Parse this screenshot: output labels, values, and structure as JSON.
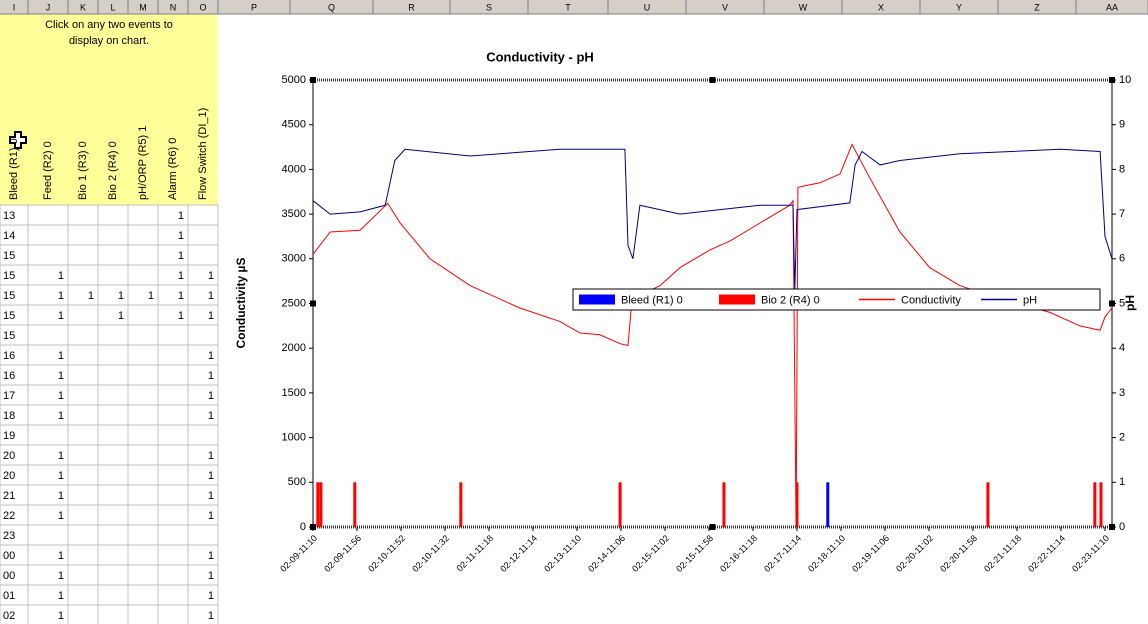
{
  "sheet": {
    "columns": [
      "I",
      "J",
      "K",
      "L",
      "M",
      "N",
      "O",
      "P",
      "Q",
      "R",
      "S",
      "T",
      "U",
      "V",
      "W",
      "X",
      "Y",
      "Z",
      "AA"
    ],
    "instruction": [
      "Click on any two events to",
      "display on chart."
    ],
    "headers": [
      "Bleed (R1) 0",
      "Feed (R2) 0",
      "Bio 1 (R3) 0",
      "Bio 2 (R4) 0",
      "pH/ORP (R5) 1",
      "Alarm (R6) 0",
      "Flow Switch (DI_1)"
    ],
    "rows": [
      [
        "13",
        null,
        null,
        null,
        null,
        1,
        null
      ],
      [
        "14",
        null,
        null,
        null,
        null,
        1,
        null
      ],
      [
        "15",
        null,
        null,
        null,
        null,
        1,
        null
      ],
      [
        "15",
        1,
        null,
        null,
        null,
        1,
        1
      ],
      [
        "15",
        1,
        1,
        1,
        1,
        1,
        1
      ],
      [
        "15",
        1,
        null,
        1,
        null,
        1,
        1
      ],
      [
        "15",
        null,
        null,
        null,
        null,
        null,
        null
      ],
      [
        "16",
        1,
        null,
        null,
        null,
        null,
        1
      ],
      [
        "16",
        1,
        null,
        null,
        null,
        null,
        1
      ],
      [
        "17",
        1,
        null,
        null,
        null,
        null,
        1
      ],
      [
        "18",
        1,
        null,
        null,
        null,
        null,
        1
      ],
      [
        "19",
        null,
        null,
        null,
        null,
        null,
        null
      ],
      [
        "20",
        1,
        null,
        null,
        null,
        null,
        1
      ],
      [
        "20",
        1,
        null,
        null,
        null,
        null,
        1
      ],
      [
        "21",
        1,
        null,
        null,
        null,
        null,
        1
      ],
      [
        "22",
        1,
        null,
        null,
        null,
        null,
        1
      ],
      [
        "23",
        null,
        null,
        null,
        null,
        null,
        null
      ],
      [
        "00",
        1,
        null,
        null,
        null,
        null,
        1
      ],
      [
        "00",
        1,
        null,
        null,
        null,
        null,
        1
      ],
      [
        "01",
        1,
        null,
        null,
        null,
        null,
        1
      ],
      [
        "02",
        1,
        null,
        null,
        null,
        null,
        1
      ]
    ]
  },
  "chart_data": {
    "type": "line",
    "title": "Conductivity -  pH",
    "y_label": "Conductivity µS",
    "y2_label": "pH",
    "xlim": [
      0,
      18.16
    ],
    "xticks": [
      {
        "value": 0,
        "label": "02-09-11:10"
      },
      {
        "value": 1,
        "label": "02-09-11:56"
      },
      {
        "value": 2,
        "label": "02-10-11:52"
      },
      {
        "value": 3,
        "label": "02-10-11:32"
      },
      {
        "value": 4,
        "label": "02-11-11:18"
      },
      {
        "value": 5,
        "label": "02-12-11:14"
      },
      {
        "value": 6,
        "label": "02-13-11:10"
      },
      {
        "value": 7,
        "label": "02-14-11:06"
      },
      {
        "value": 8,
        "label": "02-15-11:02"
      },
      {
        "value": 9,
        "label": "02-15-11:58"
      },
      {
        "value": 10,
        "label": "02-16-11:18"
      },
      {
        "value": 11,
        "label": "02-17-11:14"
      },
      {
        "value": 12,
        "label": "02-18-11:10"
      },
      {
        "value": 13,
        "label": "02-19-11:06"
      },
      {
        "value": 14,
        "label": "02-20-11:02"
      },
      {
        "value": 15,
        "label": "02-20-11:58"
      },
      {
        "value": 16,
        "label": "02-21-11:18"
      },
      {
        "value": 17,
        "label": "02-22-11:14"
      },
      {
        "value": 18,
        "label": "02-23-11:10"
      }
    ],
    "ylim": [
      0,
      5000
    ],
    "yticks": [
      0,
      500,
      1000,
      1500,
      2000,
      2500,
      3000,
      3500,
      4000,
      4500,
      5000
    ],
    "y2lim": [
      0,
      10
    ],
    "y2ticks": [
      0,
      1,
      2,
      3,
      4,
      5,
      6,
      7,
      8,
      9,
      10
    ],
    "legend": "center right",
    "series": [
      {
        "name": "Bleed (R1) 0",
        "type": "bar",
        "color": "#0000ff",
        "x": [
          11.7
        ],
        "values": [
          500
        ]
      },
      {
        "name": "Bio 2 (R4) 0",
        "type": "bar",
        "color": "#ff0000",
        "x": [
          0.11,
          0.18,
          0.95,
          3.36,
          6.98,
          9.34,
          11.0,
          15.34,
          17.77,
          17.91
        ],
        "values": [
          500,
          500,
          500,
          500,
          500,
          500,
          500,
          500,
          500,
          500
        ]
      },
      {
        "name": "Conductivity",
        "type": "line",
        "color": "#ff0000",
        "x": [
          0,
          0.39,
          1.07,
          1.7,
          1.98,
          2.66,
          3.57,
          4.7,
          5.61,
          6.07,
          6.52,
          6.98,
          7.16,
          7.25,
          7.89,
          8.34,
          9.02,
          9.48,
          10.16,
          10.84,
          10.91,
          10.98,
          11.02,
          11.52,
          11.98,
          12.25,
          12.66,
          13.34,
          14.02,
          14.7,
          15.61,
          16.75,
          17.43,
          17.89,
          18.0,
          18.16
        ],
        "values": [
          3050,
          3300,
          3320,
          3620,
          3400,
          3000,
          2700,
          2450,
          2300,
          2170,
          2150,
          2050,
          2030,
          2550,
          2700,
          2900,
          3100,
          3200,
          3400,
          3600,
          3650,
          0,
          3800,
          3850,
          3950,
          4280,
          3900,
          3300,
          2900,
          2700,
          2550,
          2400,
          2250,
          2200,
          2350,
          2450
        ]
      },
      {
        "name": "pH",
        "type": "line",
        "color": "#000080",
        "axis": "y2",
        "x": [
          0,
          0.39,
          1.07,
          1.64,
          1.86,
          2.09,
          3.57,
          5.61,
          7.09,
          7.16,
          7.27,
          7.43,
          8.34,
          9.25,
          10.16,
          10.91,
          10.95,
          11.0,
          12.2,
          12.32,
          12.48,
          12.89,
          13.34,
          14.7,
          16.98,
          17.89,
          18.0,
          18.16
        ],
        "values": [
          7.3,
          7.0,
          7.05,
          7.2,
          8.2,
          8.45,
          8.3,
          8.45,
          8.45,
          6.3,
          6.0,
          7.2,
          7.0,
          7.1,
          7.2,
          7.2,
          5.3,
          7.1,
          7.25,
          8.1,
          8.4,
          8.1,
          8.2,
          8.35,
          8.45,
          8.4,
          6.5,
          6.0
        ]
      }
    ]
  }
}
